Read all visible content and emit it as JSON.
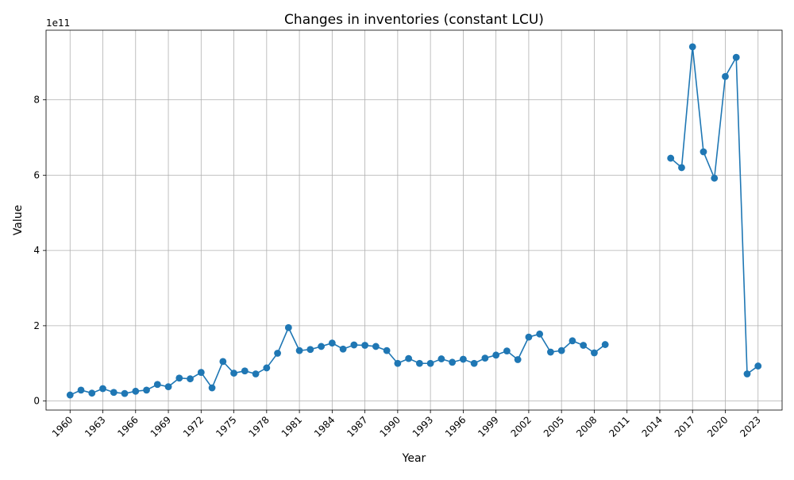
{
  "chart_data": {
    "type": "line",
    "title": "Changes in inventories (constant LCU)",
    "xlabel": "Year",
    "ylabel": "Value",
    "y_offset_label": "1e11",
    "x_ticks": [
      1960,
      1963,
      1966,
      1969,
      1972,
      1975,
      1978,
      1981,
      1984,
      1987,
      1990,
      1993,
      1996,
      1999,
      2002,
      2005,
      2008,
      2011,
      2014,
      2017,
      2020,
      2023
    ],
    "y_ticks": [
      0,
      2,
      4,
      6,
      8
    ],
    "y_tick_scale": 100000000000,
    "xlim": [
      1957.8,
      2025.2
    ],
    "ylim": [
      -24000000000.0,
      985000000000.0
    ],
    "grid": true,
    "marker": "circle",
    "color": "#1f77b4",
    "series": [
      {
        "x": [
          1960,
          1961,
          1962,
          1963,
          1964,
          1965,
          1966,
          1967,
          1968,
          1969,
          1970,
          1971,
          1972,
          1973,
          1974,
          1975,
          1976,
          1977,
          1978,
          1979,
          1980,
          1981,
          1982,
          1983,
          1984,
          1985,
          1986,
          1987,
          1988,
          1989,
          1990,
          1991,
          1992,
          1993,
          1994,
          1995,
          1996,
          1997,
          1998,
          1999,
          2000,
          2001,
          2002,
          2003,
          2004,
          2005,
          2006,
          2007,
          2008,
          2009,
          2010,
          2011,
          2012,
          2013,
          2014,
          2015,
          2016,
          2017,
          2018,
          2019,
          2020,
          2021,
          2022,
          2023
        ],
        "values": [
          16000000000.0,
          29000000000.0,
          21000000000.0,
          33000000000.0,
          23000000000.0,
          20000000000.0,
          26000000000.0,
          29000000000.0,
          44000000000.0,
          38000000000.0,
          61000000000.0,
          59000000000.0,
          76000000000.0,
          35000000000.0,
          105000000000.0,
          74000000000.0,
          80000000000.0,
          72000000000.0,
          88000000000.0,
          127000000000.0,
          195000000000.0,
          134000000000.0,
          137000000000.0,
          145000000000.0,
          154000000000.0,
          138000000000.0,
          149000000000.0,
          148000000000.0,
          145000000000.0,
          134000000000.0,
          100000000000.0,
          113000000000.0,
          100000000000.0,
          100000000000.0,
          112000000000.0,
          103000000000.0,
          111000000000.0,
          100000000000.0,
          114000000000.0,
          122000000000.0,
          133000000000.0,
          110000000000.0,
          170000000000.0,
          178000000000.0,
          130000000000.0,
          134000000000.0,
          160000000000.0,
          148000000000.0,
          128000000000.0,
          150000000000.0,
          null,
          null,
          null,
          null,
          null,
          645000000000.0,
          620000000000.0,
          941000000000.0,
          662000000000.0,
          592000000000.0,
          862000000000.0,
          913000000000.0,
          72000000000.0,
          93000000000.0
        ]
      }
    ]
  }
}
